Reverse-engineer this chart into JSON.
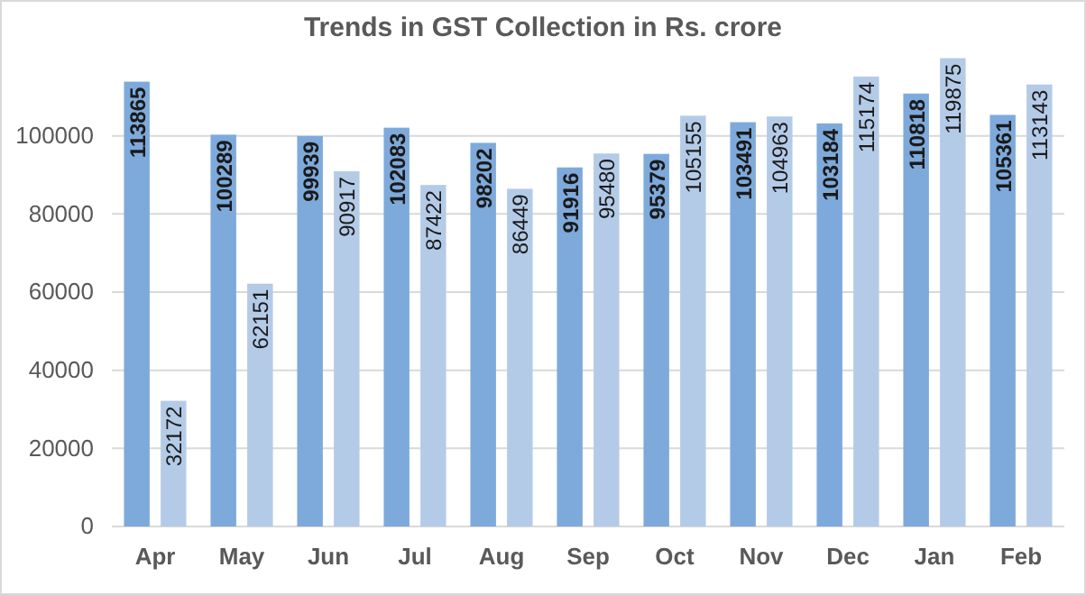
{
  "chart_data": {
    "type": "bar",
    "title": "Trends in GST Collection in Rs. crore",
    "categories": [
      "Apr",
      "May",
      "Jun",
      "Jul",
      "Aug",
      "Sep",
      "Oct",
      "Nov",
      "Dec",
      "Jan",
      "Feb"
    ],
    "series": [
      {
        "color": "#7eaadb",
        "values": [
          113865,
          100289,
          99939,
          102083,
          98202,
          91916,
          95379,
          103491,
          103184,
          110818,
          105361
        ]
      },
      {
        "color": "#b4cbe8",
        "values": [
          32172,
          62151,
          90917,
          87422,
          86449,
          95480,
          105155,
          104963,
          115174,
          119875,
          113143
        ]
      }
    ],
    "ylim": [
      0,
      120000
    ],
    "yticks": [
      0,
      20000,
      40000,
      60000,
      80000,
      100000
    ],
    "grid": "y",
    "data_labels": true
  }
}
